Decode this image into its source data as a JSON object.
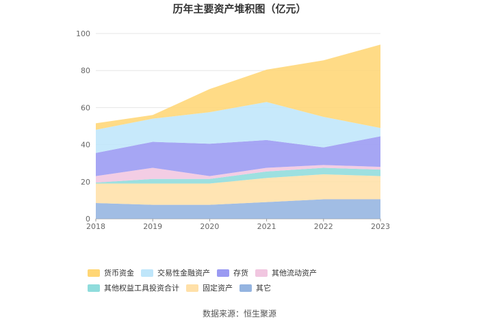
{
  "chart_data": {
    "type": "area",
    "stacked": true,
    "title": "历年主要资产堆积图（亿元）",
    "x": [
      "2018",
      "2019",
      "2020",
      "2021",
      "2022",
      "2023"
    ],
    "ylim": [
      0,
      100
    ],
    "yticks": [
      0,
      20,
      40,
      60,
      80,
      100
    ],
    "grid": true,
    "legend_position": "bottom",
    "series": [
      {
        "name": "其它",
        "color": "#94B4E0",
        "values": [
          8.5,
          7.5,
          7.5,
          9.0,
          10.5,
          10.5
        ]
      },
      {
        "name": "固定资产",
        "color": "#FFE0A8",
        "values": [
          10.5,
          11.5,
          11.5,
          13.0,
          13.5,
          12.5
        ]
      },
      {
        "name": "其他权益工具投资合计",
        "color": "#8FDCDC",
        "values": [
          0.5,
          2.5,
          2.5,
          3.5,
          3.5,
          3.5
        ]
      },
      {
        "name": "其他流动资产",
        "color": "#F1C6E0",
        "values": [
          3.5,
          6.0,
          1.5,
          2.0,
          1.5,
          1.5
        ]
      },
      {
        "name": "存货",
        "color": "#9A9AF2",
        "values": [
          12.5,
          14.0,
          17.5,
          15.0,
          9.5,
          16.5
        ]
      },
      {
        "name": "交易性金融资产",
        "color": "#BFE6FA",
        "values": [
          12.5,
          12.5,
          17.0,
          20.5,
          16.5,
          4.5
        ]
      },
      {
        "name": "货币资金",
        "color": "#FFD675",
        "values": [
          3.5,
          2.0,
          12.5,
          17.5,
          30.5,
          45.0
        ]
      }
    ]
  },
  "legend_order": [
    "货币资金",
    "交易性金融资产",
    "存货",
    "其他流动资产",
    "其他权益工具投资合计",
    "固定资产",
    "其它"
  ],
  "source": "数据来源：恒生聚源"
}
